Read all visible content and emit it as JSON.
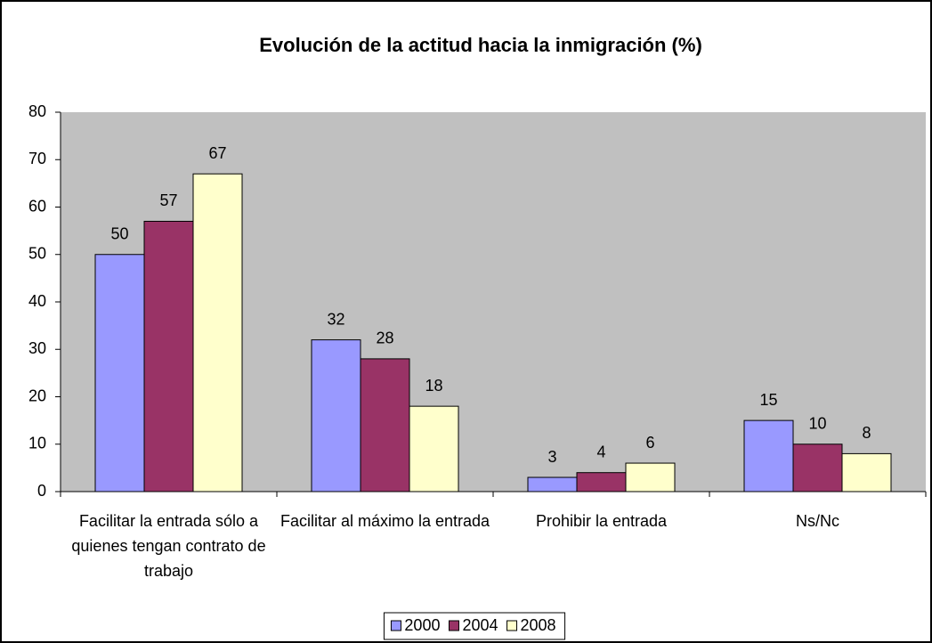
{
  "chart_data": {
    "type": "bar",
    "title": "Evolución de la actitud hacia la inmigración (%)",
    "categories": [
      "Facilitar la entrada sólo a quienes tengan contrato de trabajo",
      "Facilitar al máximo la entrada",
      "Prohibir la entrada",
      "Ns/Nc"
    ],
    "series": [
      {
        "name": "2000",
        "color": "#9999ff",
        "values": [
          50,
          32,
          3,
          15
        ]
      },
      {
        "name": "2004",
        "color": "#993366",
        "values": [
          57,
          28,
          4,
          10
        ]
      },
      {
        "name": "2008",
        "color": "#ffffcc",
        "values": [
          67,
          18,
          6,
          8
        ]
      }
    ],
    "ylim": [
      0,
      80
    ],
    "yticks": [
      0,
      10,
      20,
      30,
      40,
      50,
      60,
      70,
      80
    ],
    "grid": false,
    "legend": "bottom"
  }
}
